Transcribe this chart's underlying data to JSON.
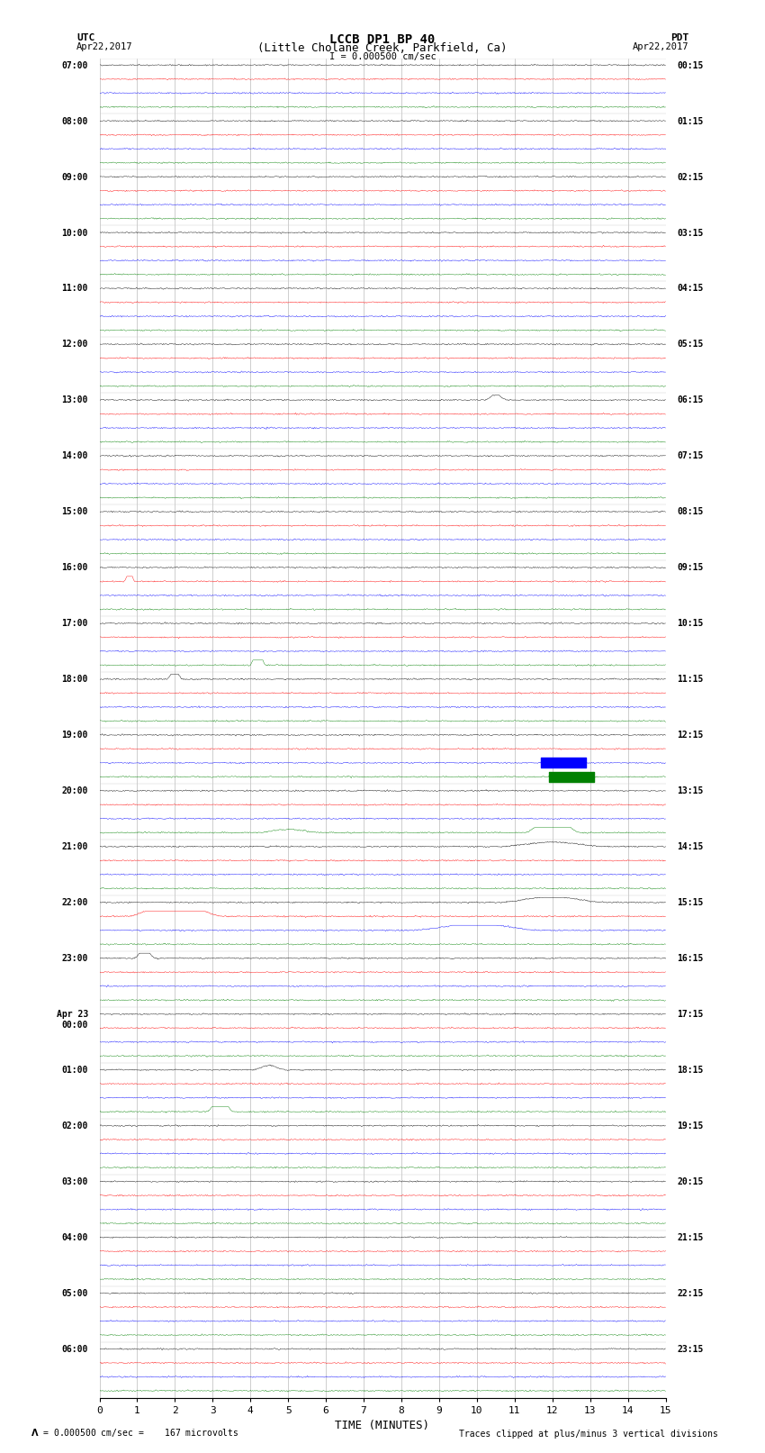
{
  "title_line1": "LCCB DP1 BP 40",
  "title_line2": "(Little Cholane Creek, Parkfield, Ca)",
  "scale_label": "I = 0.000500 cm/sec",
  "utc_label": "UTC",
  "pdt_label": "PDT",
  "date_left": "Apr22,2017",
  "date_right": "Apr22,2017",
  "xlabel": "TIME (MINUTES)",
  "footer_left": "= 0.000500 cm/sec =    167 microvolts",
  "footer_right": "Traces clipped at plus/minus 3 vertical divisions",
  "xlim": [
    0,
    15
  ],
  "xticks": [
    0,
    1,
    2,
    3,
    4,
    5,
    6,
    7,
    8,
    9,
    10,
    11,
    12,
    13,
    14,
    15
  ],
  "num_rows": 24,
  "traces_per_row": 4,
  "row_labels_left": [
    "07:00",
    "08:00",
    "09:00",
    "10:00",
    "11:00",
    "12:00",
    "13:00",
    "14:00",
    "15:00",
    "16:00",
    "17:00",
    "18:00",
    "19:00",
    "20:00",
    "21:00",
    "22:00",
    "23:00",
    "Apr 23\n00:00",
    "01:00",
    "02:00",
    "03:00",
    "04:00",
    "05:00",
    "06:00"
  ],
  "row_labels_right": [
    "00:15",
    "01:15",
    "02:15",
    "03:15",
    "04:15",
    "05:15",
    "06:15",
    "07:15",
    "08:15",
    "09:15",
    "10:15",
    "11:15",
    "12:15",
    "13:15",
    "14:15",
    "15:15",
    "16:15",
    "17:15",
    "18:15",
    "19:15",
    "20:15",
    "21:15",
    "22:15",
    "23:15"
  ],
  "trace_colors": [
    "black",
    "red",
    "blue",
    "green"
  ],
  "bg_color": "white",
  "noise_amplitude": 0.012,
  "seed": 42
}
